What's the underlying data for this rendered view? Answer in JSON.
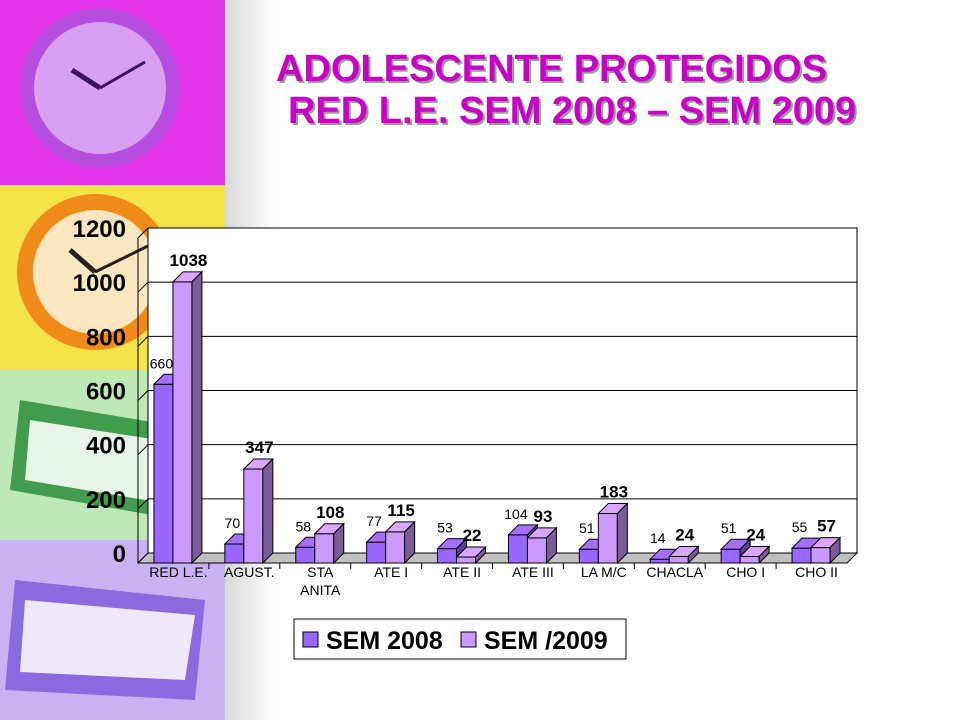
{
  "slide": {
    "title_line1": "ADOLESCENTE PROTEGIDOS",
    "title_line2": "RED L.E. SEM  2008 – SEM 2009"
  },
  "chart_data": {
    "type": "bar",
    "categories": [
      "RED L.E.",
      "AGUST.",
      "STA ANITA",
      "ATE I",
      "ATE II",
      "ATE III",
      "LA M/C",
      "CHACLA",
      "CHO I",
      "CHO II"
    ],
    "series": [
      {
        "name": "SEM 2008",
        "values": [
          660,
          70,
          58,
          77,
          53,
          104,
          51,
          14,
          51,
          55
        ],
        "color": "#9966ff"
      },
      {
        "name": "SEM /2009",
        "values": [
          1038,
          347,
          108,
          115,
          22,
          93,
          183,
          24,
          24,
          57
        ],
        "color": "#cc99ff"
      }
    ],
    "ylim": [
      0,
      1200
    ],
    "yticks": [
      0,
      200,
      400,
      600,
      800,
      1000,
      1200
    ],
    "grid": true,
    "legend_position": "bottom"
  }
}
